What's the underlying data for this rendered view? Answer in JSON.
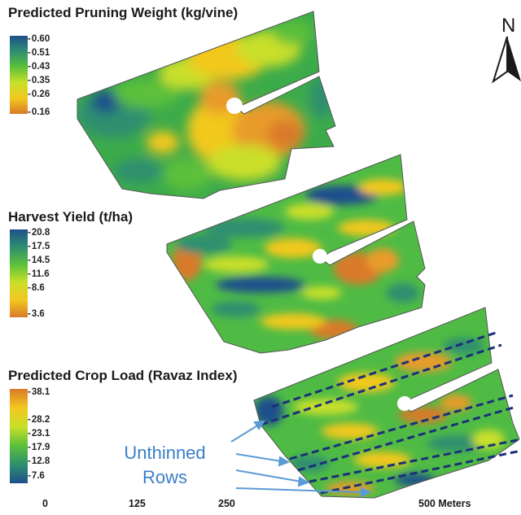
{
  "maps": [
    {
      "title": "Predicted Pruning Weight (kg/vine)",
      "legend_ticks": [
        "0.60",
        "0.51",
        "0.43",
        "0.35",
        "0.26",
        "0.16"
      ],
      "colors": [
        "#1f4f8c",
        "#2e8f6f",
        "#5cc03a",
        "#c9df2a",
        "#f2c81e",
        "#d97a2a"
      ]
    },
    {
      "title": "Harvest Yield (t/ha)",
      "legend_ticks": [
        "20.8",
        "17.5",
        "14.5",
        "11.6",
        "8.6",
        "3.6"
      ],
      "colors": [
        "#1f4f8c",
        "#2e8f6f",
        "#5cc03a",
        "#c9df2a",
        "#f2c81e",
        "#d97a2a"
      ]
    },
    {
      "title": "Predicted Crop Load (Ravaz Index)",
      "legend_ticks": [
        "38.1",
        "28.2",
        "23.1",
        "17.9",
        "12.8",
        "7.6"
      ],
      "colors": [
        "#d97a2a",
        "#f2c81e",
        "#c9df2a",
        "#5cc03a",
        "#2e8f6f",
        "#1f4f8c"
      ]
    }
  ],
  "annotation": {
    "line1": "Unthinned",
    "line2": "Rows"
  },
  "scale_bar": {
    "labels": [
      "0",
      "125",
      "250",
      "500 Meters"
    ]
  },
  "north_arrow": {
    "letter": "N"
  },
  "accent_colors": {
    "annotation": "#3a7fc8",
    "dashed_rows": "#1c2f7a"
  }
}
